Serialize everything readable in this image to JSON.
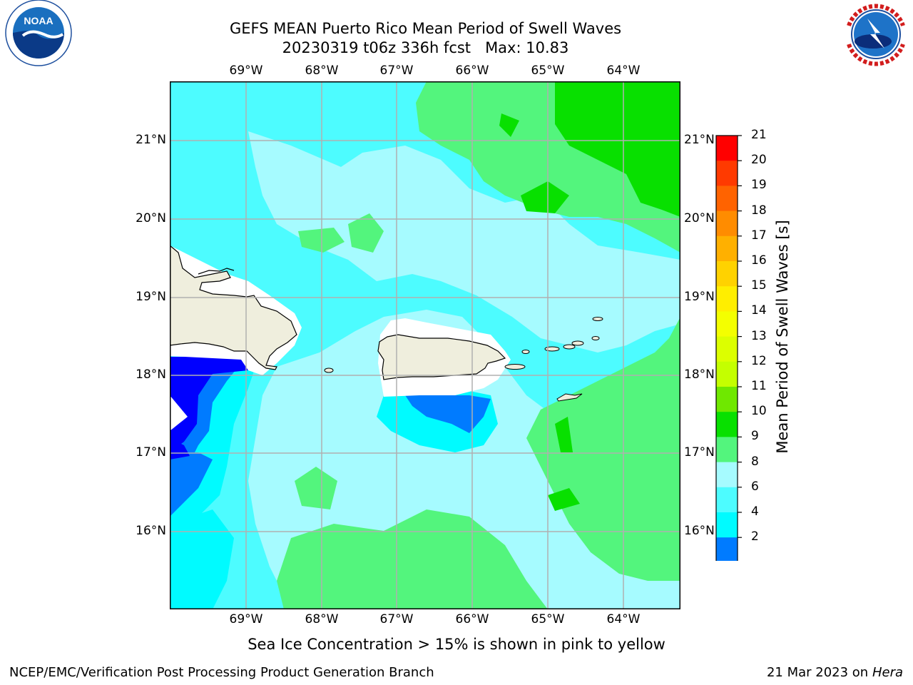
{
  "header": {
    "title_line1": "GEFS MEAN Puerto Rico Mean Period of Swell Waves",
    "title_line2": "20230319 t06z 336h fcst   Max: 10.83"
  },
  "logos": {
    "left_icon": "noaa-logo",
    "right_icon": "nws-logo"
  },
  "map": {
    "lon_labels": [
      "69°W",
      "68°W",
      "67°W",
      "66°W",
      "65°W",
      "64°W"
    ],
    "lat_labels": [
      "21°N",
      "20°N",
      "19°N",
      "18°N",
      "17°N",
      "16°N"
    ],
    "land_color": "#efeedd",
    "grid_color": "#b0b0b0"
  },
  "colorbar": {
    "label": "Mean Period of Swell Waves [s]",
    "ticks": [
      "21",
      "20",
      "19",
      "18",
      "17",
      "16",
      "15",
      "14",
      "13",
      "12",
      "11",
      "10",
      "9",
      "8",
      "6",
      "4",
      "2"
    ],
    "colors_top_to_bottom": [
      "#ff0000",
      "#ff3a00",
      "#ff6300",
      "#ff8c00",
      "#ffb000",
      "#ffd200",
      "#ffee00",
      "#f4ff00",
      "#dcff00",
      "#c4ff00",
      "#6fe800",
      "#08e000",
      "#53f57d",
      "#a6fbff",
      "#4dfcff",
      "#00fbff",
      "#007bff"
    ],
    "underflow_color": "#0000ff"
  },
  "notes": {
    "sea_ice": "Sea Ice Concentration > 15% is shown in pink to yellow"
  },
  "footer": {
    "left": "NCEP/EMC/Verification Post Processing Product Generation Branch",
    "right_date": "21 Mar 2023 on",
    "right_machine": "Hera"
  }
}
